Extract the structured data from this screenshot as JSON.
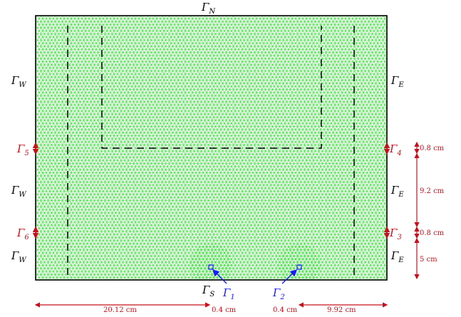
{
  "boundaries": {
    "north": {
      "main": "Γ",
      "sub": "N"
    },
    "south": {
      "main": "Γ",
      "sub": "S"
    },
    "west": {
      "main": "Γ",
      "sub": "W"
    },
    "east": {
      "main": "Γ",
      "sub": "E"
    },
    "g1": {
      "main": "Γ",
      "sub": "1"
    },
    "g2": {
      "main": "Γ",
      "sub": "2"
    },
    "g3": {
      "main": "Γ",
      "sub": "3"
    },
    "g4": {
      "main": "Γ",
      "sub": "4"
    },
    "g5": {
      "main": "Γ",
      "sub": "5"
    },
    "g6": {
      "main": "Γ",
      "sub": "6"
    }
  },
  "dimensions": {
    "right_top": "0.8 cm",
    "right_mid": "9.2 cm",
    "right_low": "0.8 cm",
    "right_bottom": "5 cm",
    "bottom_left": "20.12 cm",
    "bottom_g1": "0.4 cm",
    "bottom_g2": "0.4 cm",
    "bottom_right": "9.92 cm"
  },
  "colors": {
    "mesh": "#22dd22",
    "dim": "#c8101c",
    "source": "#1a1aff",
    "outline": "#000000"
  }
}
